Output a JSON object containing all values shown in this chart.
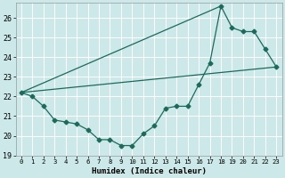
{
  "xlabel": "Humidex (Indice chaleur)",
  "background_color": "#cce8e8",
  "line_color": "#1a6b5a",
  "grid_color": "#ffffff",
  "xlim": [
    -0.5,
    23.5
  ],
  "ylim": [
    19.0,
    26.75
  ],
  "yticks": [
    19,
    20,
    21,
    22,
    23,
    24,
    25,
    26
  ],
  "xticks": [
    0,
    1,
    2,
    3,
    4,
    5,
    6,
    7,
    8,
    9,
    10,
    11,
    12,
    13,
    14,
    15,
    16,
    17,
    18,
    19,
    20,
    21,
    22,
    23
  ],
  "series1_x": [
    0,
    1,
    2,
    3,
    4,
    5,
    6,
    7,
    8,
    9,
    10,
    11,
    12,
    13,
    14,
    15,
    16,
    17,
    18,
    19,
    20,
    21,
    22,
    23
  ],
  "series1_y": [
    22.2,
    22.0,
    21.5,
    20.8,
    20.7,
    20.6,
    20.3,
    19.8,
    19.8,
    19.5,
    19.5,
    20.1,
    20.5,
    21.4,
    21.5,
    21.5,
    22.6,
    23.7,
    26.6,
    25.5,
    25.3,
    25.3,
    24.4,
    23.5
  ],
  "trend_x": [
    0,
    23
  ],
  "trend_y": [
    22.2,
    23.5
  ],
  "trend2_x": [
    0,
    18
  ],
  "trend2_y": [
    22.2,
    26.6
  ]
}
